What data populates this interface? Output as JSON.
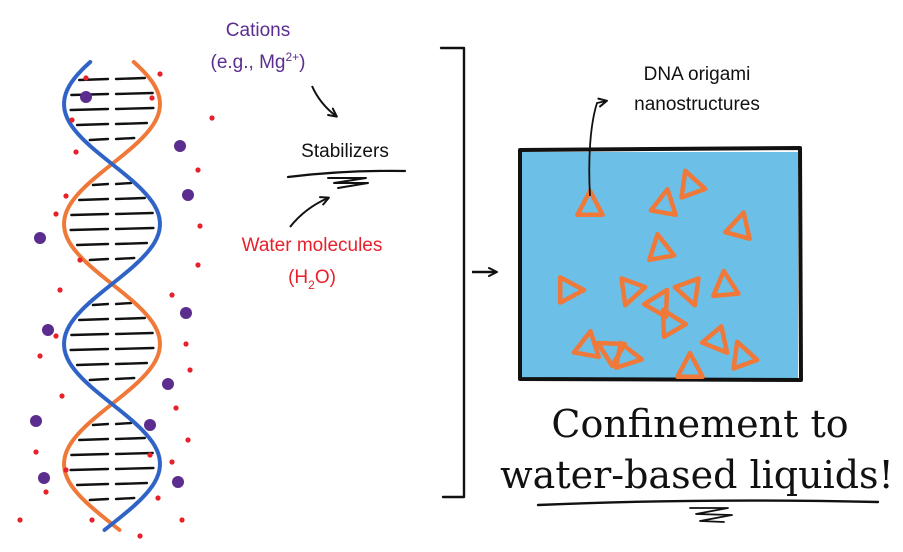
{
  "labels": {
    "cations_line1": "Cations",
    "cations_line2_prefix": "(e.g., Mg",
    "cations_superscript": "2+",
    "cations_line2_suffix": ")",
    "stabilizers": "Stabilizers",
    "water_line1": "Water molecules",
    "water_line2_prefix": "(H",
    "water_subscript": "2",
    "water_line2_suffix": "O)",
    "dna_origami_line1": "DNA origami",
    "dna_origami_line2": "nanostructures",
    "headline_line1": "Confinement to",
    "headline_line2": "water-based liquids!"
  },
  "colors": {
    "cation": "#5b2d8e",
    "water": "#e8202a",
    "strand_orange": "#f07838",
    "strand_blue": "#2f63c6",
    "liquid": "#6cbfe6",
    "ink": "#111111"
  },
  "icons": {
    "arrow": "arrow-icon",
    "bracket": "bracket-icon",
    "triangle": "triangle-icon"
  }
}
